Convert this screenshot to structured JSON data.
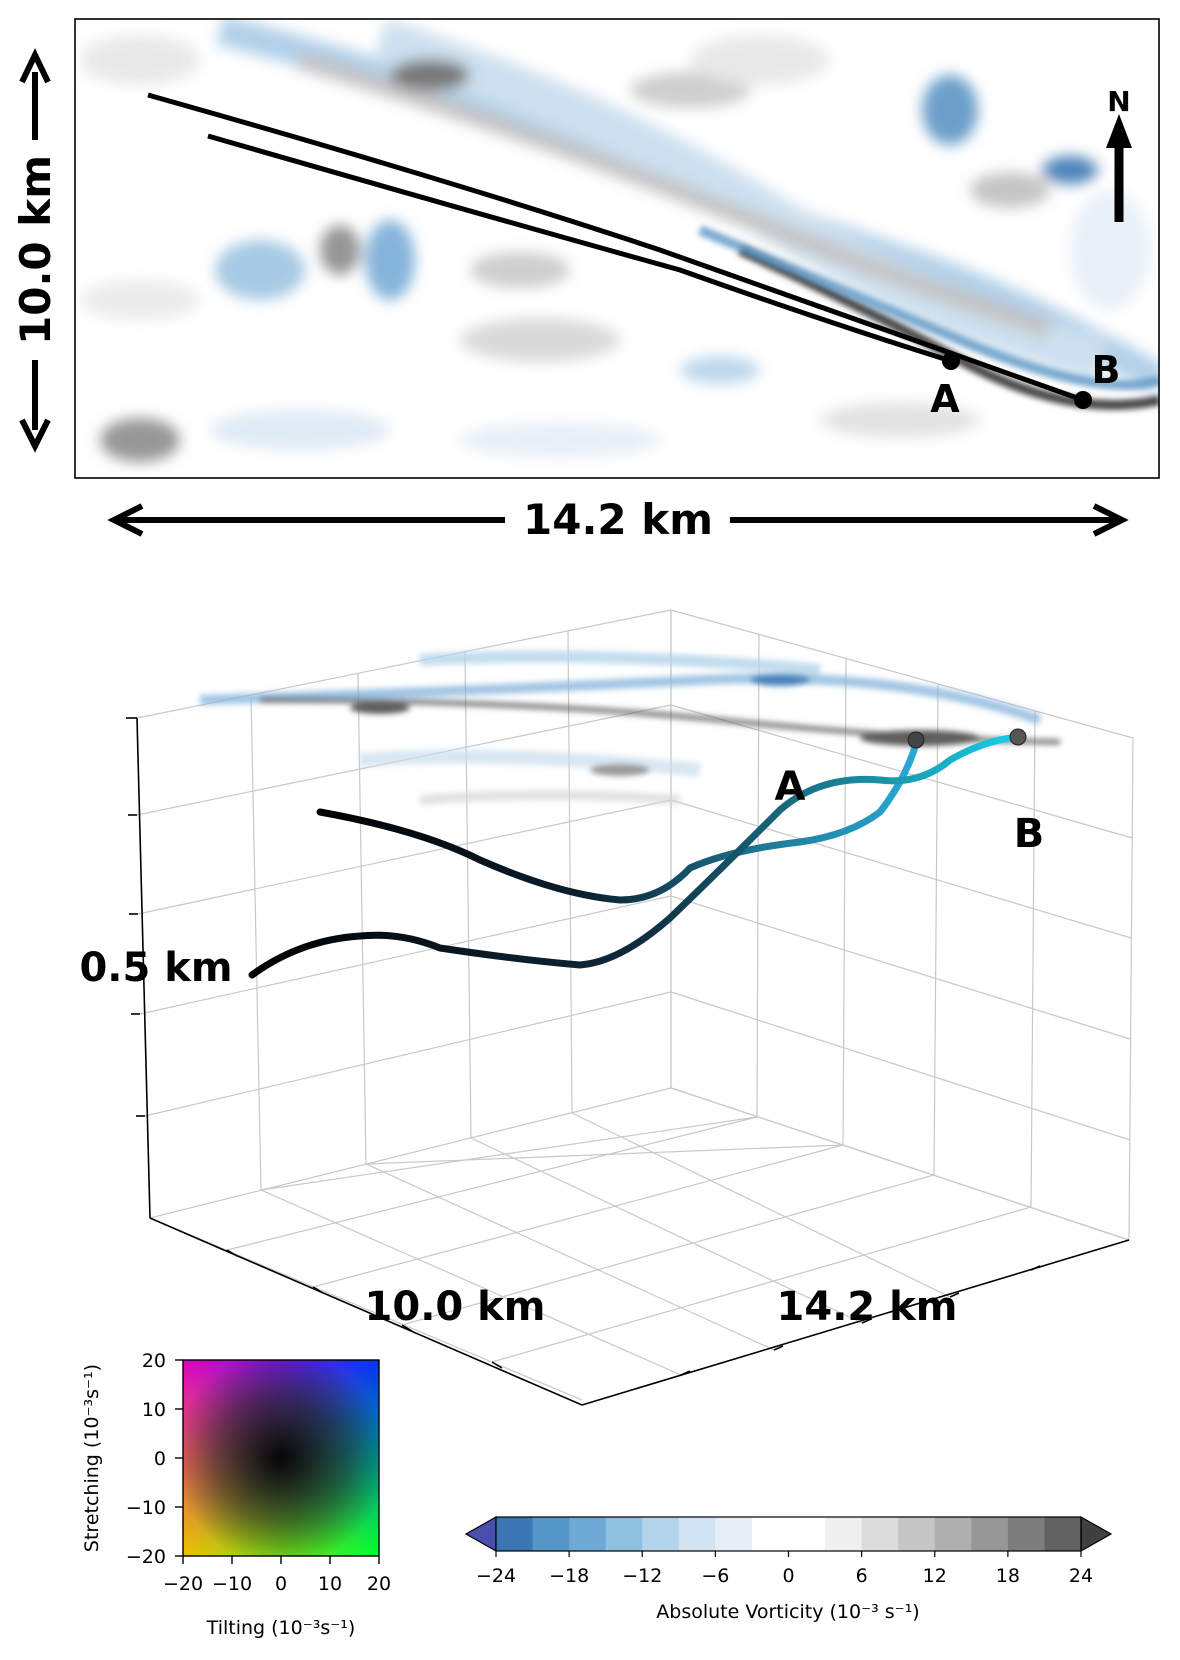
{
  "top_panel": {
    "height_label": "10.0 km",
    "width_label": "14.2 km",
    "north_label": "N",
    "point_a": "A",
    "point_b": "B"
  },
  "view3d": {
    "z_label": "0.5 km",
    "y_label": "10.0 km",
    "x_label": "14.2 km",
    "point_a": "A",
    "point_b": "B"
  },
  "legend2d": {
    "xlabel": "Tilting (10⁻³s⁻¹)",
    "ylabel": "Stretching (10⁻³s⁻¹)",
    "xticks": [
      "−20",
      "−10",
      "0",
      "10",
      "20"
    ],
    "yticks": [
      "20",
      "10",
      "0",
      "−10",
      "−20"
    ],
    "colors": {
      "top_left": "#e000c0",
      "top_right": "#0030ff",
      "bottom_left": "#f0c000",
      "bottom_right": "#00ff30",
      "center": "#000000"
    }
  },
  "colorbar": {
    "label": "Absolute Vorticity (10⁻³ s⁻¹)",
    "ticks": [
      "−24",
      "−18",
      "−12",
      "−6",
      "0",
      "6",
      "12",
      "18",
      "24"
    ],
    "colors": [
      "#4a4fae",
      "#3b76b3",
      "#5596c9",
      "#6fa9d6",
      "#90c0e0",
      "#b3d4ea",
      "#d2e3f1",
      "#e6eff8",
      "#ffffff",
      "#ffffff",
      "#f0f0f0",
      "#dcdcdc",
      "#c6c6c6",
      "#afafaf",
      "#979797",
      "#7d7d7d",
      "#626262",
      "#404040"
    ]
  },
  "chart_data": {
    "type": "heatmap",
    "title": "",
    "field": "Absolute Vorticity",
    "range": [
      -24,
      24
    ],
    "extent_km": {
      "x": 14.2,
      "y": 10.0,
      "z": 0.5
    },
    "trajectories": [
      {
        "name": "A"
      },
      {
        "name": "B"
      }
    ]
  }
}
